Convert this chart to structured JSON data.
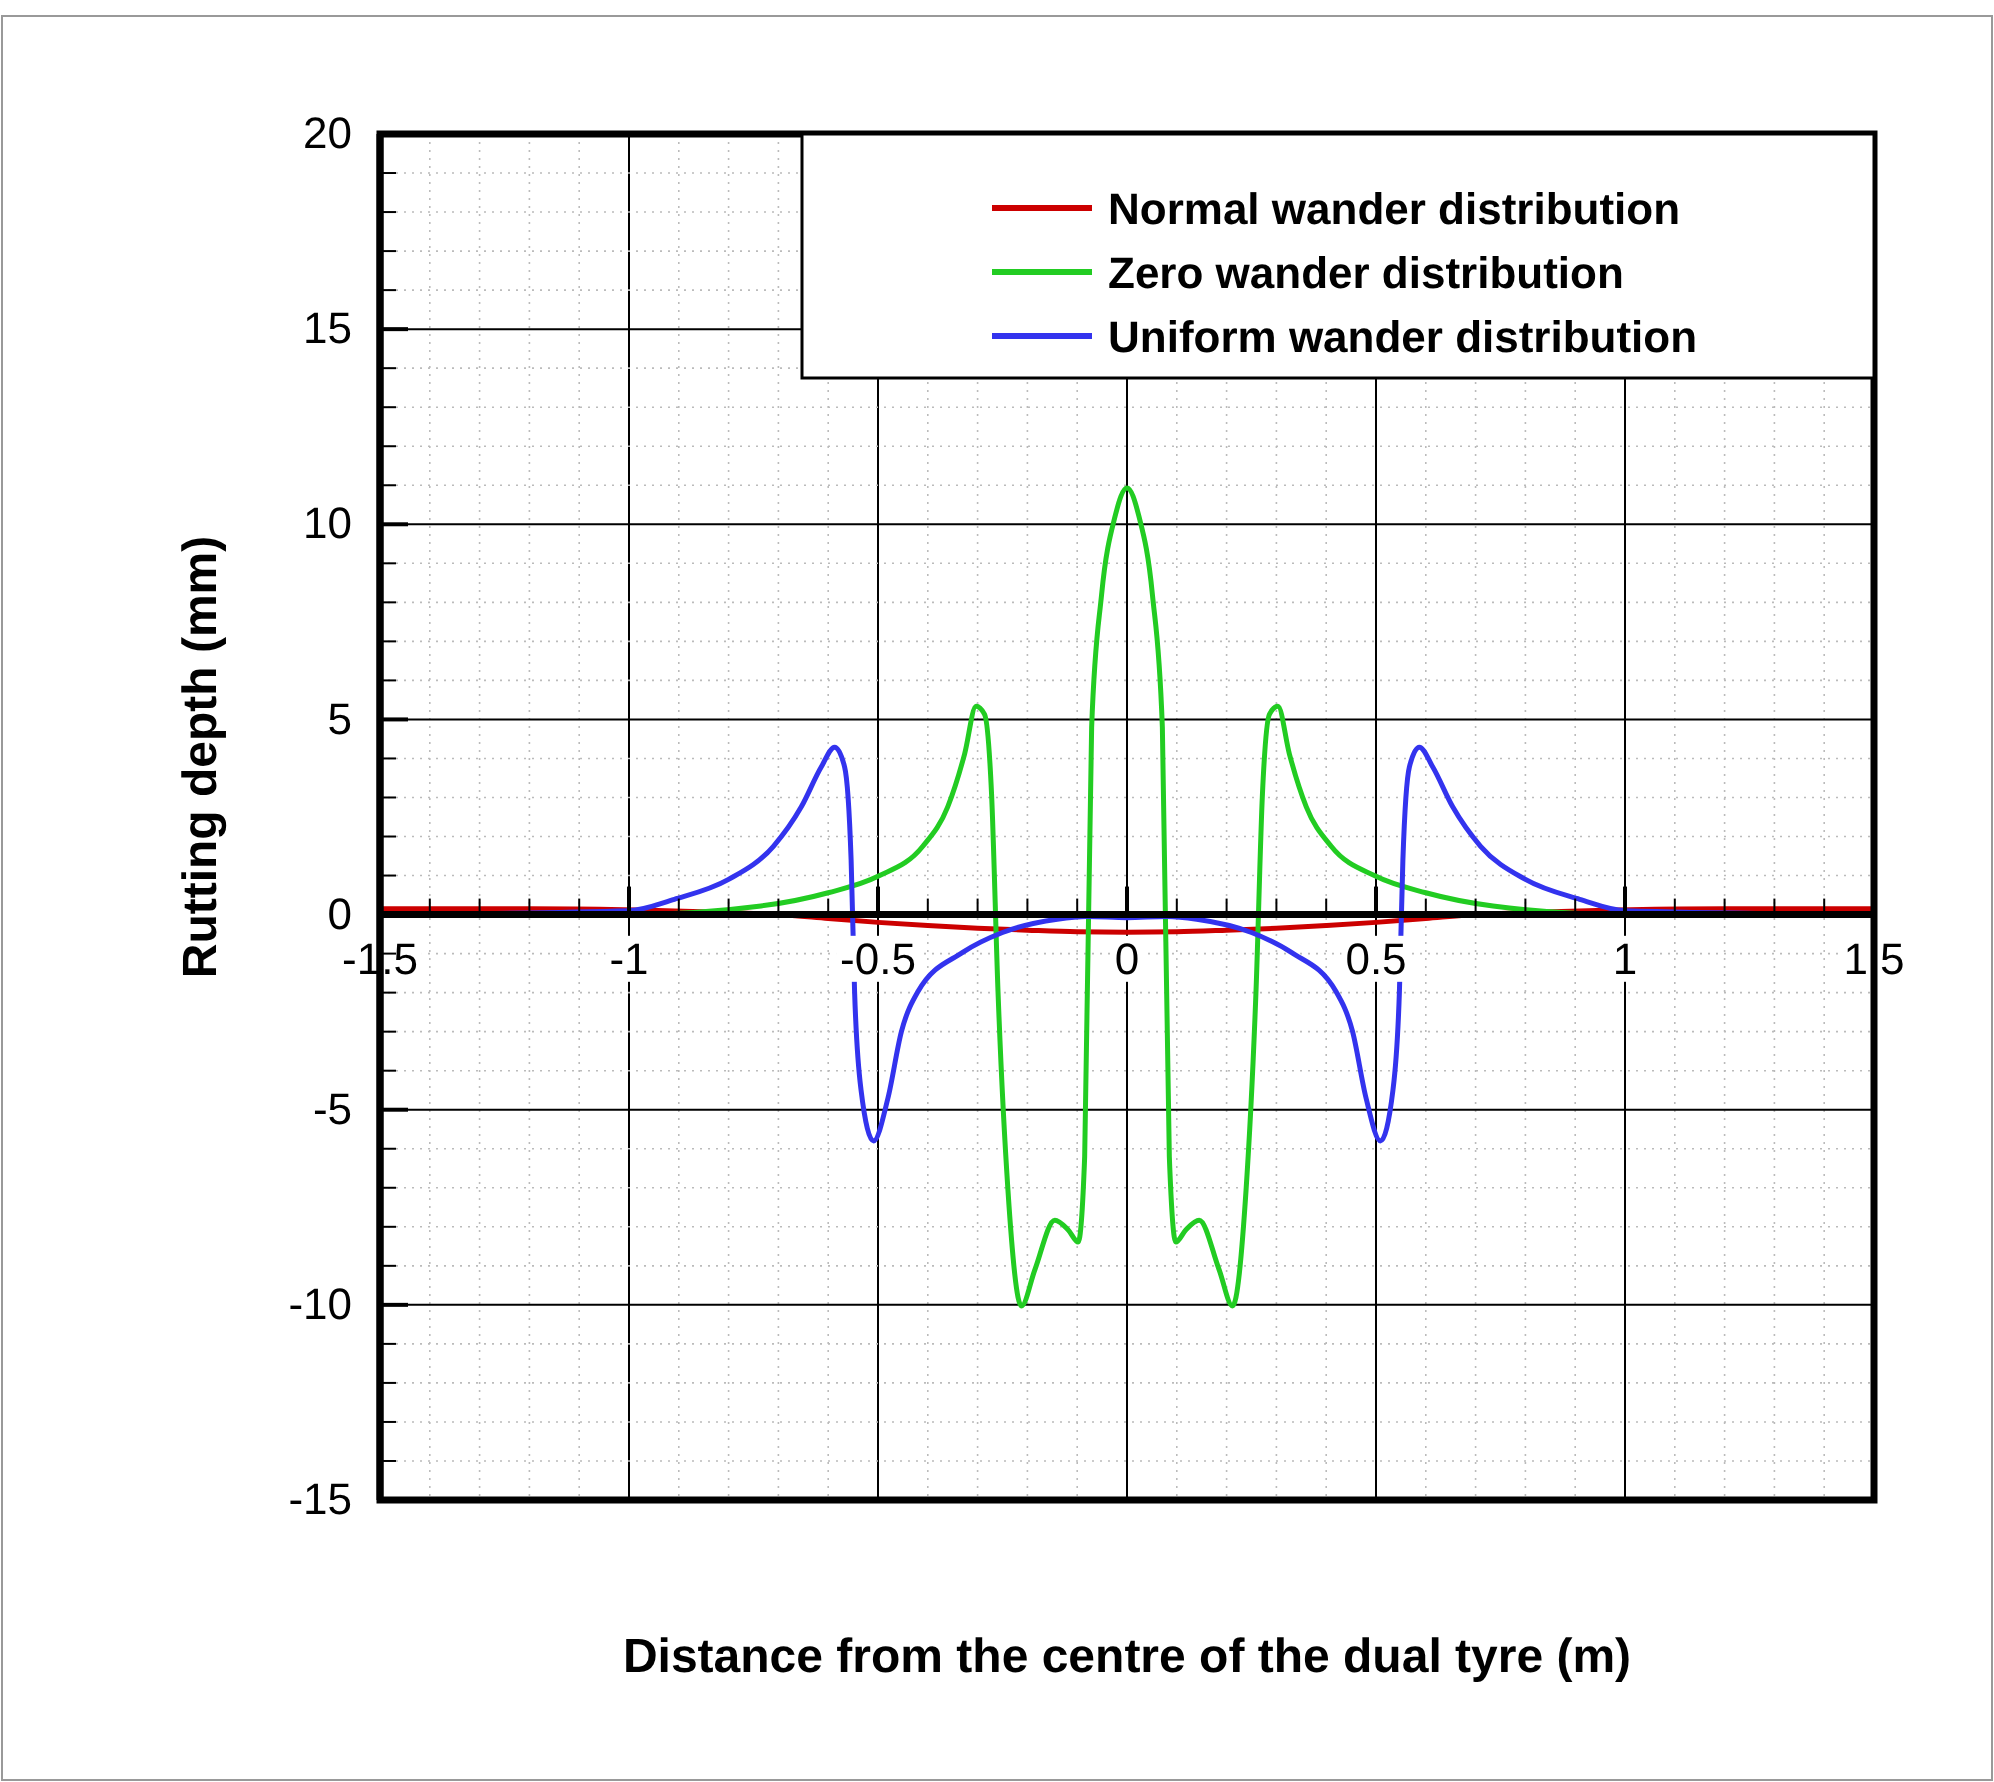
{
  "chart_data": {
    "type": "line",
    "xlabel": "Distance from the centre of the dual tyre (m)",
    "ylabel": "Rutting depth (mm)",
    "xlim": [
      -1.5,
      1.5
    ],
    "ylim": [
      -15,
      20
    ],
    "xticks": [
      -1.5,
      {
        "value": -1.4,
        "label": null
      },
      {
        "value": -1.3,
        "label": null
      },
      {
        "value": -1.2,
        "label": null
      },
      {
        "value": -1.1,
        "label": null
      },
      -1,
      {
        "value": -0.9,
        "label": null
      },
      {
        "value": -0.8,
        "label": null
      },
      {
        "value": -0.7,
        "label": null
      },
      {
        "value": -0.6,
        "label": null
      },
      -0.5,
      {
        "value": -0.4,
        "label": null
      },
      {
        "value": -0.3,
        "label": null
      },
      {
        "value": -0.2,
        "label": null
      },
      {
        "value": -0.1,
        "label": null
      },
      0,
      {
        "value": 0.1,
        "label": null
      },
      {
        "value": 0.2,
        "label": null
      },
      {
        "value": 0.3,
        "label": null
      },
      {
        "value": 0.4,
        "label": null
      },
      0.5,
      {
        "value": 0.6,
        "label": null
      },
      {
        "value": 0.7,
        "label": null
      },
      {
        "value": 0.8,
        "label": null
      },
      {
        "value": 0.9,
        "label": null
      },
      1,
      {
        "value": 1.1,
        "label": null
      },
      {
        "value": 1.2,
        "label": null
      },
      {
        "value": 1.3,
        "label": null
      },
      {
        "value": 1.4,
        "label": null
      },
      1.5
    ],
    "yticks": [
      -15,
      {
        "value": -14,
        "label": null
      },
      {
        "value": -13,
        "label": null
      },
      {
        "value": -12,
        "label": null
      },
      {
        "value": -11,
        "label": null
      },
      -10,
      {
        "value": -9,
        "label": null
      },
      {
        "value": -8,
        "label": null
      },
      {
        "value": -7,
        "label": null
      },
      {
        "value": -6,
        "label": null
      },
      -5,
      {
        "value": -4,
        "label": null
      },
      {
        "value": -3,
        "label": null
      },
      {
        "value": -2,
        "label": null
      },
      {
        "value": -1,
        "label": null
      },
      0,
      {
        "value": 1,
        "label": null
      },
      {
        "value": 2,
        "label": null
      },
      {
        "value": 3,
        "label": null
      },
      {
        "value": 4,
        "label": null
      },
      5,
      {
        "value": 6,
        "label": null
      },
      {
        "value": 7,
        "label": null
      },
      {
        "value": 8,
        "label": null
      },
      {
        "value": 9,
        "label": null
      },
      10,
      {
        "value": 11,
        "label": null
      },
      {
        "value": 12,
        "label": null
      },
      {
        "value": 13,
        "label": null
      },
      {
        "value": 14,
        "label": null
      },
      15,
      {
        "value": 16,
        "label": null
      },
      {
        "value": 17,
        "label": null
      },
      {
        "value": 18,
        "label": null
      },
      {
        "value": 19,
        "label": null
      },
      20
    ],
    "grid": true,
    "legend": "top right",
    "line_style": "solid",
    "marker": "none",
    "series": [
      {
        "name": "Normal wander distribution",
        "color": "#cc0000",
        "x": [
          -1.5,
          -1.2,
          -0.8,
          -0.7,
          -0.6,
          -0.5,
          -0.4,
          -0.3,
          -0.2,
          -0.1,
          0,
          0.1,
          0.2,
          0.3,
          0.4,
          0.5,
          0.6,
          0.7,
          0.8,
          1.2,
          1.5
        ],
        "values": [
          0.15,
          0.15,
          0.05,
          0,
          -0.1,
          -0.2,
          -0.28,
          -0.35,
          -0.4,
          -0.44,
          -0.45,
          -0.44,
          -0.4,
          -0.35,
          -0.28,
          -0.2,
          -0.1,
          0,
          0.05,
          0.15,
          0.15
        ]
      },
      {
        "name": "Zero wander distribution",
        "color": "#22cc22",
        "x": [
          -1.5,
          -1,
          -0.735,
          -0.6,
          -0.5,
          -0.41,
          -0.36,
          -0.326,
          -0.303,
          -0.286,
          -0.272,
          -0.259,
          -0.239,
          -0.212,
          -0.185,
          -0.145,
          -0.118,
          -0.098,
          -0.085,
          -0.071,
          -0.051,
          -0.024,
          0,
          0.024,
          0.051,
          0.071,
          0.085,
          0.098,
          0.118,
          0.145,
          0.185,
          0.212,
          0.239,
          0.259,
          0.272,
          0.286,
          0.303,
          0.326,
          0.36,
          0.41,
          0.5,
          0.6,
          0.735,
          1,
          1.5
        ],
        "values": [
          0,
          0,
          0.22,
          0.56,
          0.98,
          1.75,
          2.76,
          4.12,
          5.34,
          5.13,
          3.1,
          -1.98,
          -7.07,
          -10.03,
          -9.1,
          -7.83,
          -8.08,
          -8.39,
          -6.2,
          4.8,
          8.2,
          10.2,
          10.93,
          10.2,
          8.2,
          4.8,
          -6.2,
          -8.39,
          -8.08,
          -7.83,
          -9.1,
          -10.03,
          -7.07,
          -1.98,
          3.1,
          5.13,
          5.34,
          4.12,
          2.76,
          1.75,
          0.98,
          0.56,
          0.22,
          0,
          0
        ]
      },
      {
        "name": "Uniform wander distribution",
        "color": "#3333ee",
        "x": [
          -1.5,
          -1,
          -0.909,
          -0.8,
          -0.71,
          -0.654,
          -0.614,
          -0.587,
          -0.567,
          -0.554,
          -0.547,
          -0.534,
          -0.509,
          -0.48,
          -0.453,
          -0.42,
          -0.33,
          -0.25,
          -0.14,
          -0.08,
          0,
          0.08,
          0.14,
          0.25,
          0.33,
          0.42,
          0.453,
          0.48,
          0.509,
          0.534,
          0.547,
          0.554,
          0.567,
          0.587,
          0.614,
          0.654,
          0.71,
          0.8,
          0.909,
          1,
          1.5
        ],
        "values": [
          0,
          0.1,
          0.39,
          0.9,
          1.75,
          2.76,
          3.78,
          4.29,
          3.78,
          1.4,
          -1.98,
          -4.5,
          -5.8,
          -4.7,
          -3.0,
          -1.98,
          -0.97,
          -0.46,
          -0.12,
          -0.05,
          -0.08,
          -0.05,
          -0.12,
          -0.46,
          -0.97,
          -1.98,
          -3.0,
          -4.7,
          -5.8,
          -4.5,
          -1.98,
          1.4,
          3.78,
          4.29,
          3.78,
          2.76,
          1.75,
          0.9,
          0.39,
          0.1,
          0
        ]
      }
    ]
  }
}
